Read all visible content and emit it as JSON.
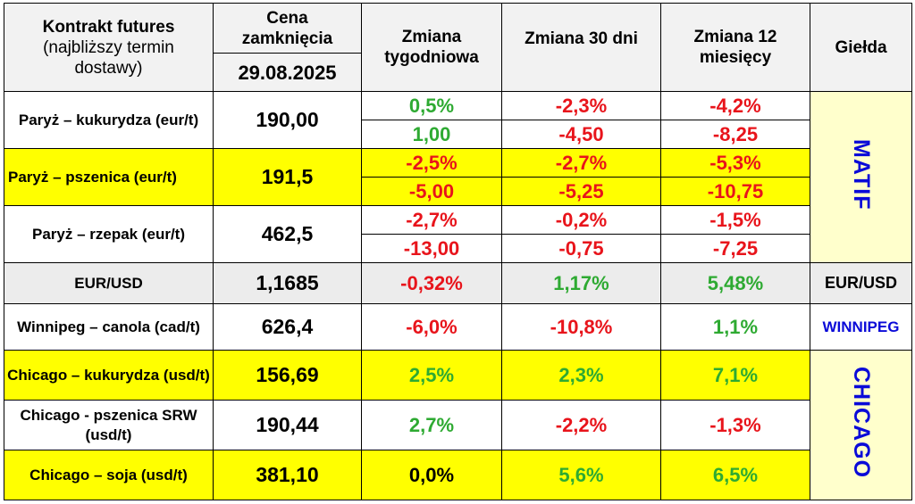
{
  "header": {
    "col1_line1": "Kontrakt futures",
    "col1_line2": "(najbliższy termin",
    "col1_line3": "dostawy)",
    "col2_label": "Cena zamknięcia",
    "col2_date": "29.08.2025",
    "col3": "Zmiana tygodniowa",
    "col4": "Zmiana 30 dni",
    "col5": "Zmiana 12 miesięcy",
    "col6": "Giełda"
  },
  "exchanges": {
    "matif": "MATIF",
    "eurusd": "EUR/USD",
    "winnipeg": "WINNIPEG",
    "chicago": "CHICAGO"
  },
  "rows": {
    "kukurydza_paryz": {
      "name": "Paryż – kukurydza (eur/t)",
      "price": "190,00",
      "w_pct": "0,5%",
      "d30_pct": "-2,3%",
      "m12_pct": "-4,2%",
      "w_abs": "1,00",
      "d30_abs": "-4,50",
      "m12_abs": "-8,25"
    },
    "pszenica_paryz": {
      "name": "Paryż – pszenica (eur/t)",
      "price": "191,5",
      "w_pct": "-2,5%",
      "d30_pct": "-2,7%",
      "m12_pct": "-5,3%",
      "w_abs": "-5,00",
      "d30_abs": "-5,25",
      "m12_abs": "-10,75"
    },
    "rzepak_paryz": {
      "name": "Paryż – rzepak (eur/t)",
      "price": "462,5",
      "w_pct": "-2,7%",
      "d30_pct": "-0,2%",
      "m12_pct": "-1,5%",
      "w_abs": "-13,00",
      "d30_abs": "-0,75",
      "m12_abs": "-7,25"
    },
    "eurusd": {
      "name": "EUR/USD",
      "price": "1,1685",
      "w_pct": "-0,32%",
      "d30_pct": "1,17%",
      "m12_pct": "5,48%"
    },
    "canola": {
      "name": "Winnipeg – canola (cad/t)",
      "price": "626,4",
      "w_pct": "-6,0%",
      "d30_pct": "-10,8%",
      "m12_pct": "1,1%"
    },
    "kukurydza_chicago": {
      "name": "Chicago – kukurydza (usd/t)",
      "price": "156,69",
      "w_pct": "2,5%",
      "d30_pct": "2,3%",
      "m12_pct": "7,1%"
    },
    "pszenica_chicago": {
      "name": "Chicago - pszenica SRW (usd/t)",
      "price": "190,44",
      "w_pct": "2,7%",
      "d30_pct": "-2,2%",
      "m12_pct": "-1,3%"
    },
    "soja_chicago": {
      "name": "Chicago – soja (usd/t)",
      "price": "381,10",
      "w_pct": "0,0%",
      "d30_pct": "5,6%",
      "m12_pct": "6,5%"
    }
  },
  "colors": {
    "positive": "#2eaa32",
    "negative": "#e8141b",
    "highlight": "#ffff00",
    "exchange": "#0a0ad8"
  }
}
